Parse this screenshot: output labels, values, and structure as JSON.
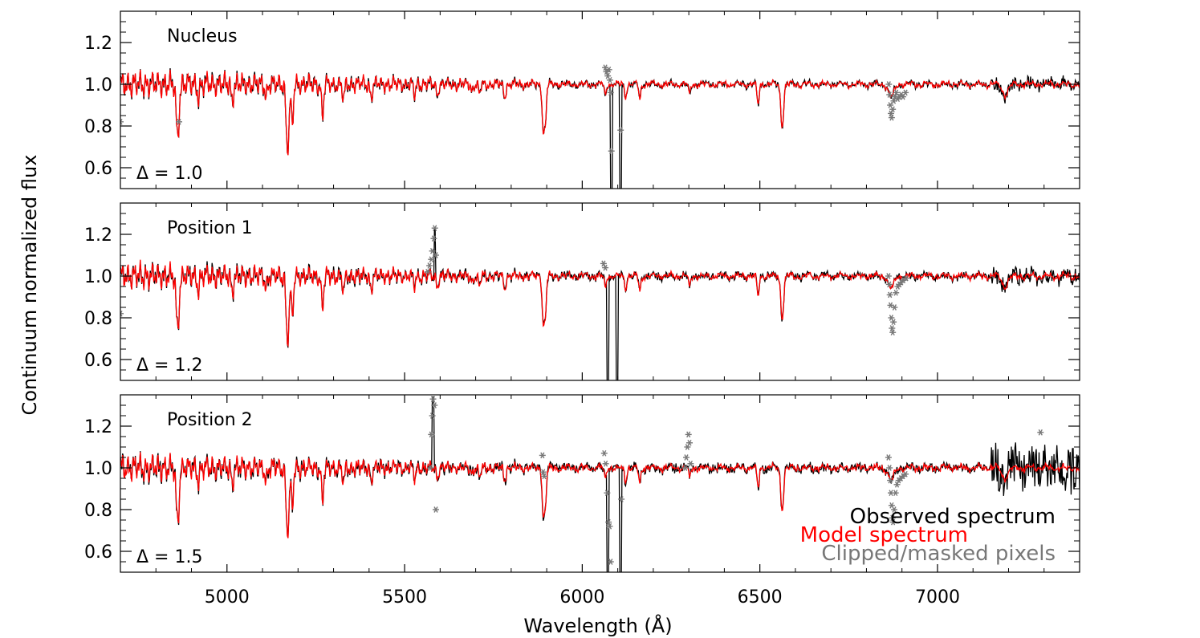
{
  "chart_data": {
    "type": "line",
    "title": "",
    "xlabel": "Wavelength (Å)",
    "ylabel": "Continuum normalized flux",
    "xlim": [
      4700,
      7400
    ],
    "ylim": [
      0.5,
      1.35
    ],
    "x_ticks": [
      5000,
      5500,
      6000,
      6500,
      7000
    ],
    "y_ticks": [
      0.6,
      0.8,
      1.0,
      1.2
    ],
    "y_tick_labels": [
      "0.6",
      "0.8",
      "1.0",
      "1.2"
    ],
    "x_tick_labels": [
      "5000",
      "5500",
      "6000",
      "6500",
      "7000"
    ],
    "legend": {
      "placement": "bottom-right",
      "entries": [
        {
          "label": "Observed spectrum",
          "color": "#000000"
        },
        {
          "label": "Model spectrum",
          "color": "#ff0000"
        },
        {
          "label": "Clipped/masked pixels",
          "color": "#777777"
        }
      ]
    },
    "panels": [
      {
        "name": "Nucleus",
        "delta_label": "Δ =   1.0",
        "delta": 1.0,
        "noise": 0.01,
        "gap": {
          "start": 6080,
          "end": 6110,
          "min": 0.45
        },
        "spike": null,
        "red_noise": 0.005,
        "masked": [
          {
            "x": 4700,
            "y": 0.82
          },
          {
            "x": 4865,
            "y": 0.82
          },
          {
            "x": 6065,
            "y": 1.08
          },
          {
            "x": 6068,
            "y": 1.06
          },
          {
            "x": 6072,
            "y": 1.04
          },
          {
            "x": 6075,
            "y": 1.07
          },
          {
            "x": 6078,
            "y": 1.02
          },
          {
            "x": 6080,
            "y": 0.96
          },
          {
            "x": 6082,
            "y": 0.68
          },
          {
            "x": 6108,
            "y": 0.78
          },
          {
            "x": 6863,
            "y": 1.0
          },
          {
            "x": 6865,
            "y": 0.95
          },
          {
            "x": 6867,
            "y": 0.9
          },
          {
            "x": 6869,
            "y": 0.86
          },
          {
            "x": 6871,
            "y": 0.84
          },
          {
            "x": 6874,
            "y": 0.88
          },
          {
            "x": 6877,
            "y": 0.92
          },
          {
            "x": 6880,
            "y": 0.94
          },
          {
            "x": 6884,
            "y": 0.96
          },
          {
            "x": 6888,
            "y": 0.93
          },
          {
            "x": 6893,
            "y": 0.94
          },
          {
            "x": 6898,
            "y": 0.95
          },
          {
            "x": 6903,
            "y": 0.94
          },
          {
            "x": 6910,
            "y": 0.96
          }
        ]
      },
      {
        "name": "Position 1",
        "delta_label": "Δ =   1.2",
        "delta": 1.2,
        "noise": 0.014,
        "gap": {
          "start": 6070,
          "end": 6100,
          "min": 0.45
        },
        "spike": {
          "x": 5585,
          "y": 1.23
        },
        "red_noise": 0.006,
        "masked": [
          {
            "x": 4700,
            "y": 0.82
          },
          {
            "x": 5565,
            "y": 1.02
          },
          {
            "x": 5570,
            "y": 1.05
          },
          {
            "x": 5575,
            "y": 1.08
          },
          {
            "x": 5578,
            "y": 1.12
          },
          {
            "x": 5582,
            "y": 1.18
          },
          {
            "x": 5585,
            "y": 1.23
          },
          {
            "x": 5588,
            "y": 1.1
          },
          {
            "x": 6060,
            "y": 1.06
          },
          {
            "x": 6065,
            "y": 1.04
          },
          {
            "x": 6862,
            "y": 1.0
          },
          {
            "x": 6864,
            "y": 0.96
          },
          {
            "x": 6866,
            "y": 0.91
          },
          {
            "x": 6868,
            "y": 0.86
          },
          {
            "x": 6870,
            "y": 0.8
          },
          {
            "x": 6872,
            "y": 0.75
          },
          {
            "x": 6874,
            "y": 0.73
          },
          {
            "x": 6876,
            "y": 0.78
          },
          {
            "x": 6879,
            "y": 0.85
          },
          {
            "x": 6883,
            "y": 0.92
          },
          {
            "x": 6888,
            "y": 0.95
          },
          {
            "x": 6893,
            "y": 0.96
          },
          {
            "x": 6898,
            "y": 0.97
          },
          {
            "x": 6904,
            "y": 0.98
          },
          {
            "x": 6912,
            "y": 0.99
          }
        ]
      },
      {
        "name": "Position 2",
        "delta_label": "Δ =   1.5",
        "delta": 1.5,
        "noise": 0.018,
        "gap": {
          "start": 6070,
          "end": 6110,
          "min": 0.45
        },
        "spike": {
          "x": 5580,
          "y": 1.34
        },
        "red_noise": 0.007,
        "masked": [
          {
            "x": 5572,
            "y": 1.0
          },
          {
            "x": 5575,
            "y": 1.16
          },
          {
            "x": 5578,
            "y": 1.25
          },
          {
            "x": 5580,
            "y": 1.33
          },
          {
            "x": 5584,
            "y": 1.3
          },
          {
            "x": 5588,
            "y": 0.8
          },
          {
            "x": 5888,
            "y": 1.06
          },
          {
            "x": 5890,
            "y": 0.98
          },
          {
            "x": 5893,
            "y": 0.96
          },
          {
            "x": 6062,
            "y": 1.07
          },
          {
            "x": 6066,
            "y": 1.02
          },
          {
            "x": 6070,
            "y": 0.88
          },
          {
            "x": 6074,
            "y": 0.74
          },
          {
            "x": 6077,
            "y": 0.72
          },
          {
            "x": 6080,
            "y": 0.55
          },
          {
            "x": 6110,
            "y": 0.85
          },
          {
            "x": 6290,
            "y": 1.0
          },
          {
            "x": 6293,
            "y": 1.05
          },
          {
            "x": 6296,
            "y": 1.1
          },
          {
            "x": 6299,
            "y": 1.16
          },
          {
            "x": 6302,
            "y": 1.12
          },
          {
            "x": 6305,
            "y": 1.02
          },
          {
            "x": 6862,
            "y": 1.05
          },
          {
            "x": 6865,
            "y": 1.0
          },
          {
            "x": 6867,
            "y": 0.94
          },
          {
            "x": 6869,
            "y": 0.88
          },
          {
            "x": 6871,
            "y": 0.82
          },
          {
            "x": 6873,
            "y": 0.76
          },
          {
            "x": 6875,
            "y": 0.74
          },
          {
            "x": 6878,
            "y": 0.8
          },
          {
            "x": 6882,
            "y": 0.88
          },
          {
            "x": 6886,
            "y": 0.92
          },
          {
            "x": 6891,
            "y": 0.94
          },
          {
            "x": 6897,
            "y": 0.95
          },
          {
            "x": 6903,
            "y": 0.96
          },
          {
            "x": 6910,
            "y": 0.97
          },
          {
            "x": 7290,
            "y": 1.17
          }
        ]
      }
    ],
    "absorption_lines": [
      {
        "x": 4861,
        "depth": 0.26,
        "width": 4
      },
      {
        "x": 4920,
        "depth": 0.06,
        "width": 3
      },
      {
        "x": 5015,
        "depth": 0.08,
        "width": 3
      },
      {
        "x": 5110,
        "depth": 0.06,
        "width": 3
      },
      {
        "x": 5168,
        "depth": 0.2,
        "width": 3
      },
      {
        "x": 5173,
        "depth": 0.22,
        "width": 3
      },
      {
        "x": 5184,
        "depth": 0.2,
        "width": 3
      },
      {
        "x": 5269,
        "depth": 0.16,
        "width": 3
      },
      {
        "x": 5328,
        "depth": 0.08,
        "width": 3
      },
      {
        "x": 5406,
        "depth": 0.06,
        "width": 3
      },
      {
        "x": 5528,
        "depth": 0.05,
        "width": 3
      },
      {
        "x": 5592,
        "depth": 0.05,
        "width": 3
      },
      {
        "x": 5690,
        "depth": 0.03,
        "width": 3
      },
      {
        "x": 5711,
        "depth": 0.05,
        "width": 3
      },
      {
        "x": 5782,
        "depth": 0.06,
        "width": 3
      },
      {
        "x": 5890,
        "depth": 0.2,
        "width": 3
      },
      {
        "x": 5896,
        "depth": 0.18,
        "width": 3
      },
      {
        "x": 6065,
        "depth": 0.05,
        "width": 3
      },
      {
        "x": 6122,
        "depth": 0.06,
        "width": 3
      },
      {
        "x": 6162,
        "depth": 0.07,
        "width": 3
      },
      {
        "x": 6302,
        "depth": 0.05,
        "width": 3
      },
      {
        "x": 6495,
        "depth": 0.1,
        "width": 3
      },
      {
        "x": 6563,
        "depth": 0.2,
        "width": 4
      },
      {
        "x": 6870,
        "depth": 0.06,
        "width": 8
      },
      {
        "x": 7190,
        "depth": 0.05,
        "width": 8
      }
    ]
  }
}
